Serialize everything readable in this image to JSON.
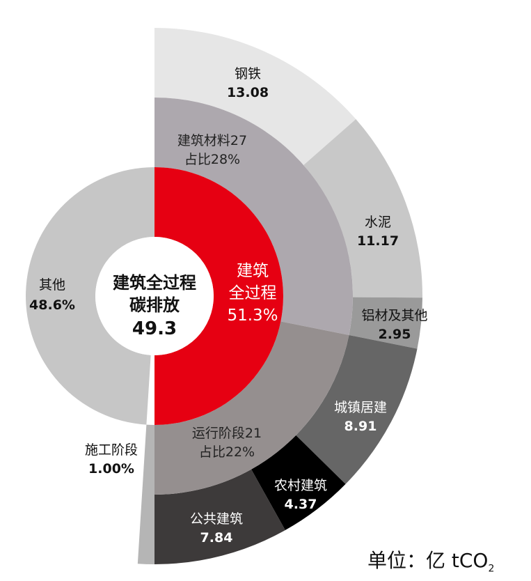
{
  "chart_data": {
    "type": "sunburst",
    "unit": {
      "prefix": "单位：亿 tCO",
      "subscript": "2"
    },
    "center": {
      "line1": "建筑全过程",
      "line2": "碳排放",
      "value": "49.3"
    },
    "inner_ring": [
      {
        "key": "building",
        "line1": "建筑",
        "line2": "全过程",
        "percent": "51.3%",
        "value": 51.3,
        "color": "#e60012",
        "text_color": "#ffffff"
      },
      {
        "key": "other",
        "line1": "其他",
        "percent": "48.6%",
        "value": 48.6,
        "color": "#c6c6c6",
        "text_color": "#111111"
      },
      {
        "key": "construction",
        "line1": "施工阶段",
        "percent": "1.00%",
        "value": 1.0,
        "color": "#b5b5b5",
        "text_color": "#111111"
      }
    ],
    "middle_ring": [
      {
        "key": "materials",
        "line1": "建筑材料27",
        "line2": "占比28%",
        "value": 27,
        "color": "#ada8ae",
        "text_color": "#222222"
      },
      {
        "key": "operation",
        "line1": "运行阶段21",
        "line2": "占比22%",
        "value": 21,
        "color": "#958f8f",
        "text_color": "#222222"
      }
    ],
    "outer_ring": [
      {
        "key": "steel",
        "name": "钢铁",
        "value": 13.08,
        "value_label": "13.08",
        "color": "#e6e6e6",
        "text_color": "#111111"
      },
      {
        "key": "cement",
        "name": "水泥",
        "value": 11.17,
        "value_label": "11.17",
        "color": "#c8c8c8",
        "text_color": "#111111"
      },
      {
        "key": "aluminum",
        "name": "铝材及其他",
        "value": 2.95,
        "value_label": "2.95",
        "color": "#9a9a9a",
        "text_color": "#111111"
      },
      {
        "key": "urban",
        "name": "城镇居建",
        "value": 8.91,
        "value_label": "8.91",
        "color": "#666666",
        "text_color": "#ffffff"
      },
      {
        "key": "rural",
        "name": "农村建筑",
        "value": 4.37,
        "value_label": "4.37",
        "color": "#000000",
        "text_color": "#ffffff"
      },
      {
        "key": "public",
        "name": "公共建筑",
        "value": 7.84,
        "value_label": "7.84",
        "color": "#3d3a3a",
        "text_color": "#ffffff"
      }
    ]
  }
}
